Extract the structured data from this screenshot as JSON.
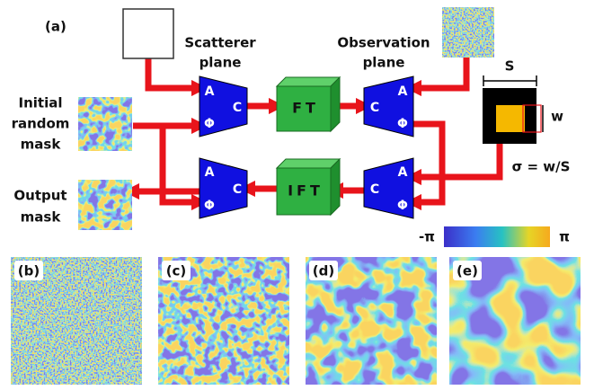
{
  "figure_label": "(a)",
  "scatterer_plane": [
    "Scatterer",
    "plane"
  ],
  "observation_plane": [
    "Observation",
    "plane"
  ],
  "initial_mask": [
    "Initial",
    "random",
    "mask"
  ],
  "output_mask": [
    "Output",
    "mask"
  ],
  "blocks": [
    {
      "a": "A",
      "c": "C",
      "phi": "Φ"
    },
    {
      "a": "A",
      "c": "C",
      "phi": "Φ"
    },
    {
      "a": "A",
      "c": "C",
      "phi": "Φ"
    },
    {
      "a": "A",
      "c": "C",
      "phi": "Φ"
    }
  ],
  "ft": "FT",
  "ift": "IFT",
  "size_label": "S",
  "width_label": "w",
  "ratio": "σ = w/S",
  "colorbar": {
    "min": "-π",
    "max": "π"
  },
  "panels": [
    "(b)",
    "(c)",
    "(d)",
    "(e)"
  ]
}
